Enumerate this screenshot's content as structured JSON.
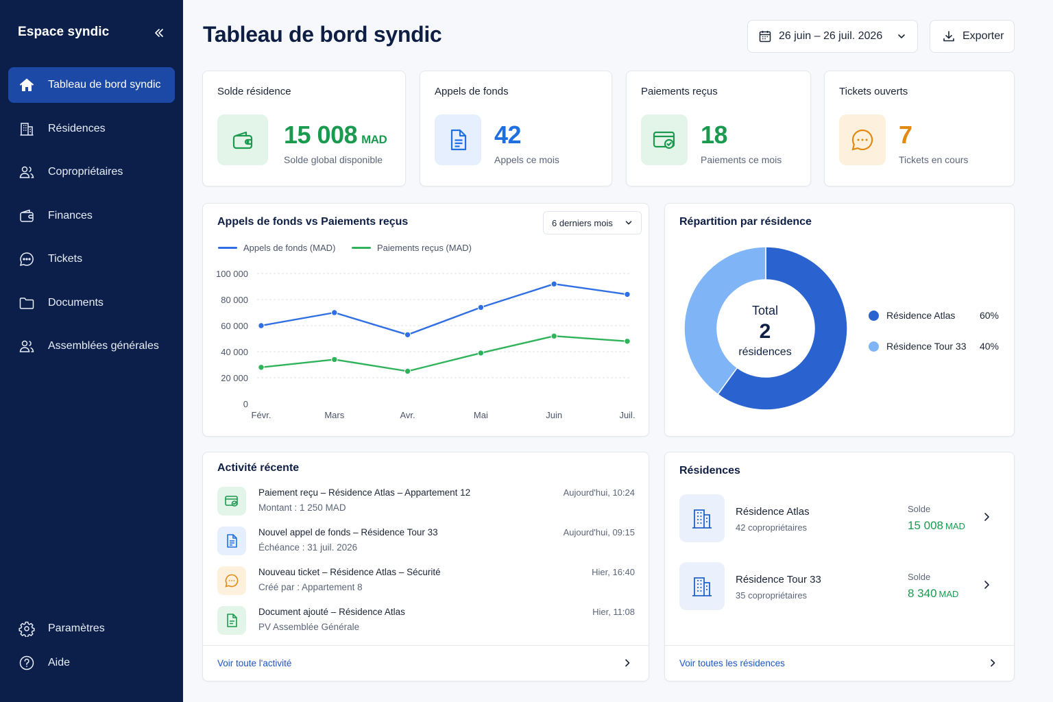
{
  "sidebar": {
    "brand": "Espace syndic",
    "items": [
      {
        "label": "Tableau de bord syndic",
        "icon": "home-icon",
        "active": true
      },
      {
        "label": "Résidences",
        "icon": "building-icon"
      },
      {
        "label": "Copropriétaires",
        "icon": "users-icon"
      },
      {
        "label": "Finances",
        "icon": "wallet-icon"
      },
      {
        "label": "Tickets",
        "icon": "chat-icon"
      },
      {
        "label": "Documents",
        "icon": "folder-icon"
      },
      {
        "label": "Assemblées générales",
        "icon": "users-icon"
      }
    ],
    "bottom": [
      {
        "label": "Paramètres",
        "icon": "gear-icon"
      },
      {
        "label": "Aide",
        "icon": "help-icon"
      }
    ]
  },
  "header": {
    "title": "Tableau de bord syndic",
    "date_range": "26 juin – 26 juil. 2026",
    "export_label": "Exporter"
  },
  "kpis": [
    {
      "title": "Solde résidence",
      "value": "15 008",
      "unit": "MAD",
      "sub": "Solde global disponible",
      "color": "#1a9a4e",
      "bg": "#e3f5e9",
      "icon": "wallet-icon"
    },
    {
      "title": "Appels de fonds",
      "value": "42",
      "unit": "",
      "sub": "Appels ce mois",
      "color": "#1f6fe0",
      "bg": "#e6effd",
      "icon": "document-icon"
    },
    {
      "title": "Paiements reçus",
      "value": "18",
      "unit": "",
      "sub": "Paiements ce mois",
      "color": "#1a9a4e",
      "bg": "#e3f5e9",
      "icon": "payment-check-icon"
    },
    {
      "title": "Tickets ouverts",
      "value": "7",
      "unit": "",
      "sub": "Tickets en cours",
      "color": "#e08a12",
      "bg": "#fdf0dd",
      "icon": "chat-icon"
    }
  ],
  "line_card": {
    "title": "Appels de fonds vs Paiements reçus",
    "period": "6 derniers mois"
  },
  "chart_data": [
    {
      "type": "line",
      "x": [
        "Févr.",
        "Mars",
        "Avr.",
        "Mai",
        "Juin",
        "Juil."
      ],
      "series": [
        {
          "name": "Appels de fonds (MAD)",
          "color": "#2f6fe3",
          "values": [
            60000,
            70000,
            53000,
            74000,
            92000,
            84000
          ]
        },
        {
          "name": "Paiements reçus (MAD)",
          "color": "#2fb35a",
          "values": [
            28000,
            34000,
            25000,
            39000,
            52000,
            48000
          ]
        }
      ],
      "yticks": [
        "100 000",
        "80 000",
        "60 000",
        "40 000",
        "20 000",
        "0"
      ],
      "ylim": [
        0,
        100000
      ],
      "grid": true,
      "legend": "top-left"
    },
    {
      "type": "pie",
      "title": "Répartition par résidence",
      "center_label": "Total",
      "center_value": "2",
      "center_unit": "résidences",
      "slices": [
        {
          "label": "Résidence Atlas",
          "value": 60,
          "pct": "60%",
          "color": "#2a63cf"
        },
        {
          "label": "Résidence Tour 33",
          "value": 40,
          "pct": "40%",
          "color": "#7fb5f6"
        }
      ],
      "legend": "right"
    }
  ],
  "activity": {
    "title": "Activité récente",
    "items": [
      {
        "title": "Paiement reçu – Résidence Atlas – Appartement 12",
        "sub": "Montant : 1 250 MAD",
        "time": "Aujourd'hui, 10:24",
        "icon": "payment-icon",
        "color": "#1a9a4e",
        "bg": "#e3f5e9"
      },
      {
        "title": "Nouvel appel de fonds – Résidence Tour 33",
        "sub": "Échéance : 31 juil. 2026",
        "time": "Aujourd'hui, 09:15",
        "icon": "document-icon",
        "color": "#1f6fe0",
        "bg": "#e6effd"
      },
      {
        "title": "Nouveau ticket – Résidence Atlas – Sécurité",
        "sub": "Créé par : Appartement 8",
        "time": "Hier, 16:40",
        "icon": "chat-icon",
        "color": "#e08a12",
        "bg": "#fdf0dd"
      },
      {
        "title": "Document ajouté – Résidence Atlas",
        "sub": "PV Assemblée Générale",
        "time": "Hier, 11:08",
        "icon": "file-icon",
        "color": "#1a9a4e",
        "bg": "#e3f5e9"
      }
    ],
    "footer": "Voir toute l'activité"
  },
  "residences": {
    "title": "Résidences",
    "items": [
      {
        "name": "Résidence Atlas",
        "sub": "42 copropriétaires",
        "sold_label": "Solde",
        "sold_value": "15 008",
        "unit": "MAD"
      },
      {
        "name": "Résidence Tour 33",
        "sub": "35 copropriétaires",
        "sold_label": "Solde",
        "sold_value": "8 340",
        "unit": "MAD"
      }
    ],
    "footer": "Voir toutes les résidences"
  }
}
